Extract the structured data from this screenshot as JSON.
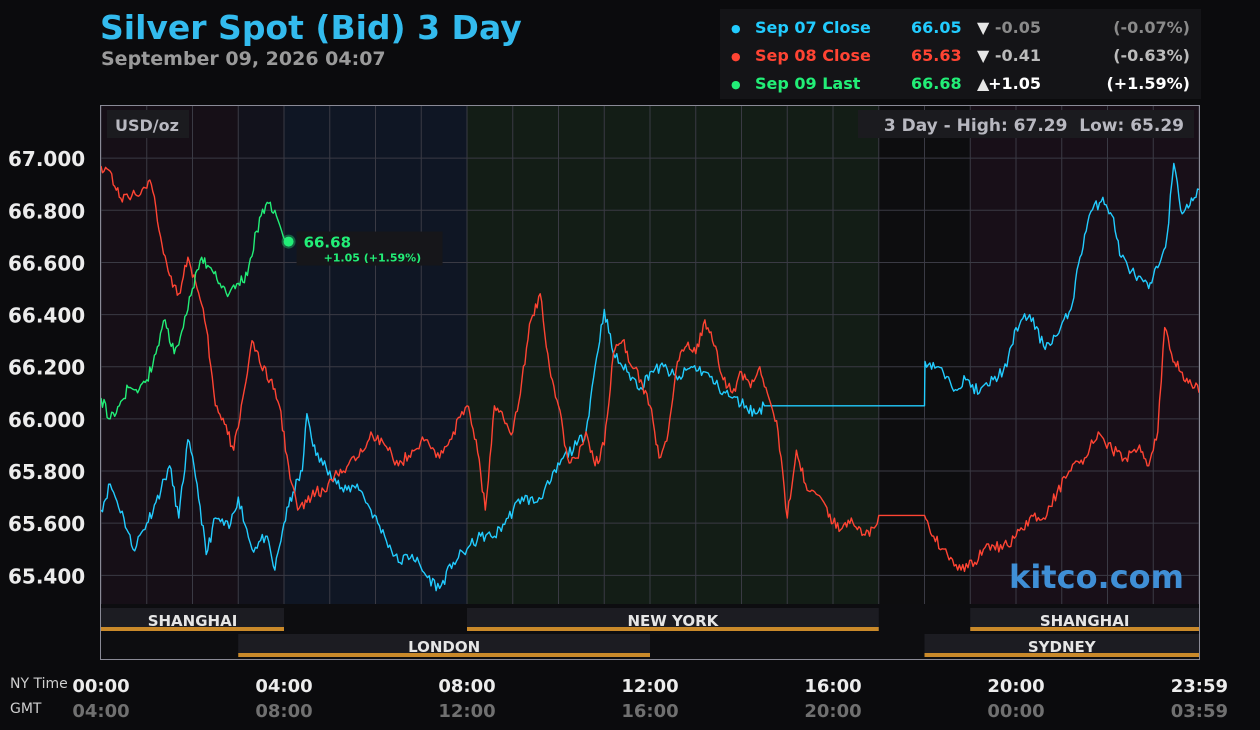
{
  "header": {
    "title": "Silver Spot (Bid) 3 Day",
    "subtitle": "September 09, 2026 04:07"
  },
  "legend": [
    {
      "dot": "●",
      "name": "Sep 07 Close",
      "value": "66.05",
      "arrow": "▼",
      "change": "-0.05",
      "pct": "(-0.07%)",
      "color": "#22ccff",
      "change_color": "#8a8a8a"
    },
    {
      "dot": "●",
      "name": "Sep 08 Close",
      "value": "65.63",
      "arrow": "▼",
      "change": "-0.41",
      "pct": "(-0.63%)",
      "color": "#ff4433",
      "change_color": "#bbbbbb"
    },
    {
      "dot": "●",
      "name": "Sep 09 Last",
      "value": "66.68",
      "arrow": "▲",
      "change": "+1.05",
      "pct": "(+1.59%)",
      "color": "#22ee77",
      "change_color": "#ffffff"
    }
  ],
  "chart_data": {
    "type": "line",
    "unit_label": "USD/oz",
    "high_low_text": "3 Day - High: 67.29  Low: 65.29",
    "watermark": "kitco.com",
    "x_axis_row1_label": "NY Time",
    "x_axis_row2_label": "GMT",
    "x_ticks_ny": [
      "00:00",
      "04:00",
      "08:00",
      "12:00",
      "16:00",
      "20:00",
      "23:59"
    ],
    "x_ticks_gmt": [
      "04:00",
      "08:00",
      "12:00",
      "16:00",
      "20:00",
      "00:00",
      "03:59"
    ],
    "y_ticks": [
      "67.000",
      "66.800",
      "66.600",
      "66.400",
      "66.200",
      "66.000",
      "65.800",
      "65.600",
      "65.400"
    ],
    "y_tick_values": [
      67.0,
      66.8,
      66.6,
      66.4,
      66.2,
      66.0,
      65.8,
      65.6,
      65.4
    ],
    "ylim": [
      65.29,
      67.2
    ],
    "xlim_hours": [
      0,
      24
    ],
    "grid": true,
    "sessions": [
      {
        "name": "SHANGHAI",
        "start": 0,
        "end": 4,
        "row": 1
      },
      {
        "name": "NEW YORK",
        "start": 8,
        "end": 17,
        "row": 1
      },
      {
        "name": "SHANGHAI",
        "start": 19,
        "end": 24,
        "row": 1
      },
      {
        "name": "LONDON",
        "start": 3,
        "end": 12,
        "row": 2
      },
      {
        "name": "SYDNEY",
        "start": 18,
        "end": 24,
        "row": 2
      }
    ],
    "last_point": {
      "value": "66.68",
      "change_text": "+1.05 (+1.59%)",
      "hour": 4.1,
      "price": 66.68
    },
    "series": [
      {
        "name": "Sep 07 Close",
        "color": "#22ccff",
        "points": [
          [
            0,
            65.65
          ],
          [
            0.2,
            65.75
          ],
          [
            0.5,
            65.62
          ],
          [
            0.7,
            65.5
          ],
          [
            1.0,
            65.6
          ],
          [
            1.2,
            65.68
          ],
          [
            1.5,
            65.82
          ],
          [
            1.7,
            65.62
          ],
          [
            1.9,
            65.92
          ],
          [
            2.1,
            65.75
          ],
          [
            2.3,
            65.48
          ],
          [
            2.5,
            65.62
          ],
          [
            2.8,
            65.58
          ],
          [
            3.0,
            65.7
          ],
          [
            3.3,
            65.5
          ],
          [
            3.6,
            65.55
          ],
          [
            3.8,
            65.42
          ],
          [
            4.0,
            65.6
          ],
          [
            4.2,
            65.72
          ],
          [
            4.4,
            65.8
          ],
          [
            4.5,
            66.02
          ],
          [
            4.7,
            65.86
          ],
          [
            5.0,
            65.8
          ],
          [
            5.3,
            65.72
          ],
          [
            5.6,
            65.75
          ],
          [
            5.9,
            65.65
          ],
          [
            6.2,
            65.55
          ],
          [
            6.5,
            65.45
          ],
          [
            6.8,
            65.48
          ],
          [
            7.1,
            65.4
          ],
          [
            7.4,
            65.35
          ],
          [
            7.7,
            65.45
          ],
          [
            8.0,
            65.5
          ],
          [
            8.3,
            65.55
          ],
          [
            8.6,
            65.55
          ],
          [
            8.9,
            65.62
          ],
          [
            9.2,
            65.7
          ],
          [
            9.5,
            65.68
          ],
          [
            9.8,
            65.75
          ],
          [
            10.1,
            65.85
          ],
          [
            10.4,
            65.9
          ],
          [
            10.6,
            65.95
          ],
          [
            10.8,
            66.2
          ],
          [
            11.0,
            66.42
          ],
          [
            11.2,
            66.25
          ],
          [
            11.5,
            66.18
          ],
          [
            11.8,
            66.12
          ],
          [
            12.0,
            66.18
          ],
          [
            12.3,
            66.2
          ],
          [
            12.6,
            66.15
          ],
          [
            12.9,
            66.2
          ],
          [
            13.2,
            66.18
          ],
          [
            13.5,
            66.12
          ],
          [
            13.8,
            66.08
          ],
          [
            14.1,
            66.05
          ],
          [
            14.3,
            66.02
          ],
          [
            14.5,
            66.05
          ],
          [
            17.0,
            66.05
          ],
          [
            18.0,
            66.05
          ],
          [
            18.01,
            66.22
          ],
          [
            18.3,
            66.2
          ],
          [
            18.6,
            66.12
          ],
          [
            18.9,
            66.15
          ],
          [
            19.2,
            66.1
          ],
          [
            19.5,
            66.15
          ],
          [
            19.8,
            66.2
          ],
          [
            20.0,
            66.35
          ],
          [
            20.3,
            66.4
          ],
          [
            20.6,
            66.28
          ],
          [
            20.9,
            66.32
          ],
          [
            21.2,
            66.42
          ],
          [
            21.4,
            66.62
          ],
          [
            21.6,
            66.78
          ],
          [
            21.9,
            66.85
          ],
          [
            22.1,
            66.78
          ],
          [
            22.3,
            66.62
          ],
          [
            22.6,
            66.55
          ],
          [
            22.9,
            66.5
          ],
          [
            23.1,
            66.58
          ],
          [
            23.3,
            66.7
          ],
          [
            23.45,
            66.98
          ],
          [
            23.6,
            66.8
          ],
          [
            23.8,
            66.82
          ],
          [
            24.0,
            66.88
          ]
        ]
      },
      {
        "name": "Sep 08 Close",
        "color": "#ff4433",
        "points": [
          [
            0,
            66.97
          ],
          [
            0.2,
            66.95
          ],
          [
            0.4,
            66.85
          ],
          [
            0.6,
            66.85
          ],
          [
            0.9,
            66.88
          ],
          [
            1.1,
            66.9
          ],
          [
            1.3,
            66.7
          ],
          [
            1.5,
            66.55
          ],
          [
            1.7,
            66.48
          ],
          [
            1.9,
            66.62
          ],
          [
            2.1,
            66.5
          ],
          [
            2.3,
            66.35
          ],
          [
            2.5,
            66.05
          ],
          [
            2.7,
            65.98
          ],
          [
            2.9,
            65.88
          ],
          [
            3.1,
            66.08
          ],
          [
            3.3,
            66.3
          ],
          [
            3.5,
            66.2
          ],
          [
            3.7,
            66.15
          ],
          [
            3.9,
            66.05
          ],
          [
            4.1,
            65.82
          ],
          [
            4.3,
            65.65
          ],
          [
            4.5,
            65.68
          ],
          [
            4.7,
            65.72
          ],
          [
            4.9,
            65.72
          ],
          [
            5.1,
            65.78
          ],
          [
            5.3,
            65.8
          ],
          [
            5.6,
            65.85
          ],
          [
            5.9,
            65.95
          ],
          [
            6.2,
            65.9
          ],
          [
            6.5,
            65.82
          ],
          [
            6.8,
            65.88
          ],
          [
            7.1,
            65.92
          ],
          [
            7.4,
            65.85
          ],
          [
            7.7,
            65.95
          ],
          [
            8.0,
            66.05
          ],
          [
            8.2,
            65.92
          ],
          [
            8.4,
            65.65
          ],
          [
            8.6,
            66.05
          ],
          [
            8.8,
            66.0
          ],
          [
            9.0,
            65.95
          ],
          [
            9.2,
            66.15
          ],
          [
            9.4,
            66.38
          ],
          [
            9.6,
            66.48
          ],
          [
            9.8,
            66.2
          ],
          [
            10.0,
            66.05
          ],
          [
            10.2,
            65.85
          ],
          [
            10.4,
            65.85
          ],
          [
            10.6,
            65.95
          ],
          [
            10.8,
            65.82
          ],
          [
            11.0,
            65.9
          ],
          [
            11.2,
            66.25
          ],
          [
            11.4,
            66.3
          ],
          [
            11.6,
            66.2
          ],
          [
            11.8,
            66.15
          ],
          [
            12.0,
            66.05
          ],
          [
            12.2,
            65.85
          ],
          [
            12.4,
            65.95
          ],
          [
            12.6,
            66.22
          ],
          [
            12.8,
            66.28
          ],
          [
            13.0,
            66.25
          ],
          [
            13.2,
            66.38
          ],
          [
            13.4,
            66.28
          ],
          [
            13.6,
            66.15
          ],
          [
            13.8,
            66.1
          ],
          [
            14.0,
            66.18
          ],
          [
            14.2,
            66.12
          ],
          [
            14.4,
            66.2
          ],
          [
            14.6,
            66.08
          ],
          [
            14.8,
            65.95
          ],
          [
            15.0,
            65.62
          ],
          [
            15.2,
            65.88
          ],
          [
            15.4,
            65.75
          ],
          [
            15.6,
            65.72
          ],
          [
            15.8,
            65.68
          ],
          [
            16.0,
            65.6
          ],
          [
            16.2,
            65.58
          ],
          [
            16.4,
            65.62
          ],
          [
            16.6,
            65.58
          ],
          [
            16.8,
            65.55
          ],
          [
            17.0,
            65.63
          ],
          [
            18.0,
            65.63
          ],
          [
            18.2,
            65.55
          ],
          [
            18.5,
            65.48
          ],
          [
            18.8,
            65.42
          ],
          [
            19.1,
            65.45
          ],
          [
            19.4,
            65.52
          ],
          [
            19.7,
            65.5
          ],
          [
            20.0,
            65.55
          ],
          [
            20.3,
            65.62
          ],
          [
            20.6,
            65.62
          ],
          [
            20.9,
            65.72
          ],
          [
            21.2,
            65.8
          ],
          [
            21.5,
            65.85
          ],
          [
            21.8,
            65.95
          ],
          [
            22.1,
            65.88
          ],
          [
            22.4,
            65.85
          ],
          [
            22.7,
            65.9
          ],
          [
            22.9,
            65.82
          ],
          [
            23.1,
            65.95
          ],
          [
            23.25,
            66.35
          ],
          [
            23.4,
            66.25
          ],
          [
            23.6,
            66.18
          ],
          [
            23.8,
            66.15
          ],
          [
            24.0,
            66.1
          ]
        ]
      },
      {
        "name": "Sep 09 Last",
        "color": "#22ee77",
        "points": [
          [
            0,
            66.08
          ],
          [
            0.2,
            66.0
          ],
          [
            0.4,
            66.05
          ],
          [
            0.6,
            66.12
          ],
          [
            0.8,
            66.1
          ],
          [
            1.0,
            66.15
          ],
          [
            1.2,
            66.25
          ],
          [
            1.4,
            66.38
          ],
          [
            1.6,
            66.25
          ],
          [
            1.8,
            66.35
          ],
          [
            2.0,
            66.5
          ],
          [
            2.2,
            66.62
          ],
          [
            2.4,
            66.58
          ],
          [
            2.6,
            66.52
          ],
          [
            2.8,
            66.48
          ],
          [
            3.0,
            66.52
          ],
          [
            3.2,
            66.55
          ],
          [
            3.4,
            66.72
          ],
          [
            3.6,
            66.82
          ],
          [
            3.8,
            66.8
          ],
          [
            3.95,
            66.72
          ],
          [
            4.1,
            66.68
          ]
        ]
      }
    ]
  }
}
